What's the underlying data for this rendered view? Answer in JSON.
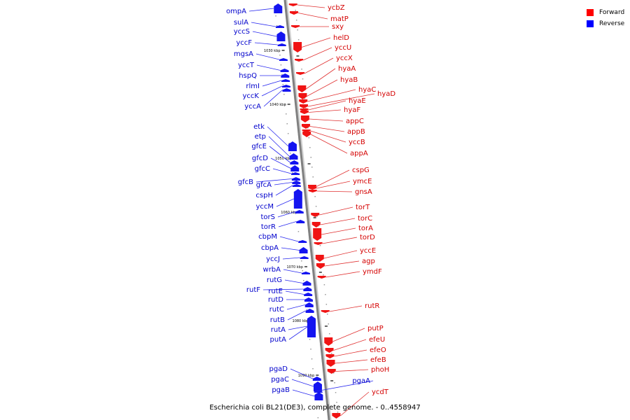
{
  "legend": [
    {
      "label": "Forward",
      "color": "#ff0000"
    },
    {
      "label": "Reverse",
      "color": "#0000ff"
    }
  ],
  "caption": "Escherichia coli BL21(DE3), complete genome. - 0..4558947",
  "bp_labels": [
    "1030 kbp",
    "1040 kbp",
    "1050 kbp",
    "1060 kbp",
    "1070 kbp",
    "1080 kbp",
    "1090 kbp"
  ],
  "genes": [
    {
      "name": "ompA",
      "strand": "reverse"
    },
    {
      "name": "sulA",
      "strand": "reverse"
    },
    {
      "name": "yccS",
      "strand": "reverse"
    },
    {
      "name": "yccF",
      "strand": "reverse"
    },
    {
      "name": "mgsA",
      "strand": "reverse"
    },
    {
      "name": "yccT",
      "strand": "reverse"
    },
    {
      "name": "hspQ",
      "strand": "reverse"
    },
    {
      "name": "rlmI",
      "strand": "reverse"
    },
    {
      "name": "yccK",
      "strand": "reverse"
    },
    {
      "name": "yccA",
      "strand": "reverse"
    },
    {
      "name": "etk",
      "strand": "reverse"
    },
    {
      "name": "etp",
      "strand": "reverse"
    },
    {
      "name": "gfcE",
      "strand": "reverse"
    },
    {
      "name": "gfcD",
      "strand": "reverse"
    },
    {
      "name": "gfcC",
      "strand": "reverse"
    },
    {
      "name": "gfcB",
      "strand": "reverse"
    },
    {
      "name": "gfcA",
      "strand": "reverse"
    },
    {
      "name": "cspH",
      "strand": "reverse"
    },
    {
      "name": "yccM",
      "strand": "reverse"
    },
    {
      "name": "torS",
      "strand": "reverse"
    },
    {
      "name": "torR",
      "strand": "reverse"
    },
    {
      "name": "cbpM",
      "strand": "reverse"
    },
    {
      "name": "cbpA",
      "strand": "reverse"
    },
    {
      "name": "yccJ",
      "strand": "reverse"
    },
    {
      "name": "wrbA",
      "strand": "reverse"
    },
    {
      "name": "rutG",
      "strand": "reverse"
    },
    {
      "name": "rutF",
      "strand": "reverse"
    },
    {
      "name": "rutE",
      "strand": "reverse"
    },
    {
      "name": "rutD",
      "strand": "reverse"
    },
    {
      "name": "rutC",
      "strand": "reverse"
    },
    {
      "name": "rutB",
      "strand": "reverse"
    },
    {
      "name": "rutA",
      "strand": "reverse"
    },
    {
      "name": "putA",
      "strand": "reverse"
    },
    {
      "name": "pgaD",
      "strand": "reverse"
    },
    {
      "name": "pgaC",
      "strand": "reverse"
    },
    {
      "name": "pgaB",
      "strand": "reverse"
    },
    {
      "name": "ycbZ",
      "strand": "forward"
    },
    {
      "name": "matP",
      "strand": "forward"
    },
    {
      "name": "sxy",
      "strand": "forward"
    },
    {
      "name": "helD",
      "strand": "forward"
    },
    {
      "name": "yccU",
      "strand": "forward"
    },
    {
      "name": "yccX",
      "strand": "forward"
    },
    {
      "name": "hyaA",
      "strand": "forward"
    },
    {
      "name": "hyaB",
      "strand": "forward"
    },
    {
      "name": "hyaC",
      "strand": "forward"
    },
    {
      "name": "hyaD",
      "strand": "forward"
    },
    {
      "name": "hyaE",
      "strand": "forward"
    },
    {
      "name": "hyaF",
      "strand": "forward"
    },
    {
      "name": "appC",
      "strand": "forward"
    },
    {
      "name": "appB",
      "strand": "forward"
    },
    {
      "name": "yccB",
      "strand": "forward"
    },
    {
      "name": "appA",
      "strand": "forward"
    },
    {
      "name": "cspG",
      "strand": "forward"
    },
    {
      "name": "ymcE",
      "strand": "forward"
    },
    {
      "name": "gnsA",
      "strand": "forward"
    },
    {
      "name": "torT",
      "strand": "forward"
    },
    {
      "name": "torC",
      "strand": "forward"
    },
    {
      "name": "torA",
      "strand": "forward"
    },
    {
      "name": "torD",
      "strand": "forward"
    },
    {
      "name": "yccE",
      "strand": "forward"
    },
    {
      "name": "agp",
      "strand": "forward"
    },
    {
      "name": "ymdF",
      "strand": "forward"
    },
    {
      "name": "rutR",
      "strand": "forward"
    },
    {
      "name": "putP",
      "strand": "forward"
    },
    {
      "name": "efeU",
      "strand": "forward"
    },
    {
      "name": "efeO",
      "strand": "forward"
    },
    {
      "name": "efeB",
      "strand": "forward"
    },
    {
      "name": "phoH",
      "strand": "forward"
    },
    {
      "name": "pgaA",
      "strand": "reverse"
    },
    {
      "name": "ycdT",
      "strand": "forward"
    }
  ]
}
